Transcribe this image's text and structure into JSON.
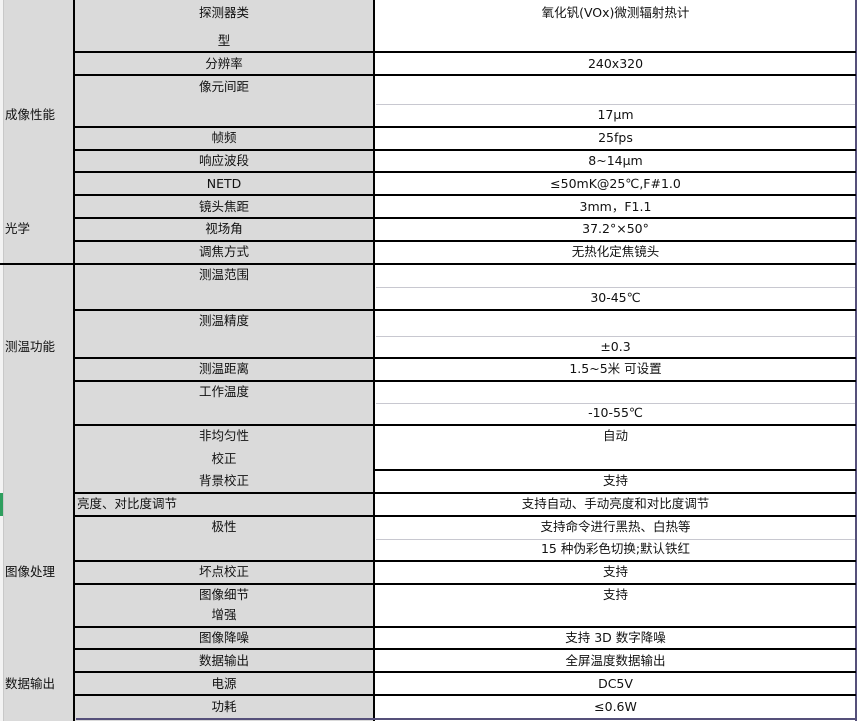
{
  "categories": {
    "imaging": "成像性能",
    "optics": "光学",
    "temperature": "测温功能",
    "image_processing": "图像处理",
    "data_output": "数据输出"
  },
  "rows": [
    {
      "label": [
        "探测器类",
        "型"
      ],
      "value": [
        "氧化钒(VOx)微测辐射热计"
      ]
    },
    {
      "label": [
        "分辨率"
      ],
      "value": [
        "240x320"
      ]
    },
    {
      "label": [
        "像元间距"
      ],
      "value": [
        "17μm"
      ]
    },
    {
      "label": [
        "帧频"
      ],
      "value": [
        "25fps"
      ]
    },
    {
      "label": [
        "响应波段"
      ],
      "value": [
        "8~14μm"
      ]
    },
    {
      "label": [
        "NETD"
      ],
      "value": [
        "≤50mK@25℃,F#1.0"
      ]
    },
    {
      "label": [
        "镜头焦距"
      ],
      "value": [
        "3mm，F1.1"
      ]
    },
    {
      "label": [
        "视场角"
      ],
      "value": [
        "37.2°×50°"
      ]
    },
    {
      "label": [
        "调焦方式"
      ],
      "value": [
        "无热化定焦镜头"
      ]
    },
    {
      "label": [
        "测温范围"
      ],
      "value": [
        "30-45℃"
      ]
    },
    {
      "label": [
        "测温精度"
      ],
      "value": [
        "±0.3"
      ]
    },
    {
      "label": [
        "测温距离"
      ],
      "value": [
        "1.5~5米 可设置"
      ]
    },
    {
      "label": [
        "工作温度"
      ],
      "value": [
        "-10-55℃"
      ]
    },
    {
      "label": [
        "非均匀性",
        "校正"
      ],
      "value": [
        "自动"
      ]
    },
    {
      "label": [
        "背景校正"
      ],
      "value": [
        "支持"
      ]
    },
    {
      "label": [
        "亮度、对比度调节"
      ],
      "value": [
        "支持自动、手动亮度和对比度调节"
      ]
    },
    {
      "label": [
        "极性"
      ],
      "value": [
        "支持命令进行黑热、白热等",
        "15 种伪彩色切换;默认铁红"
      ]
    },
    {
      "label": [
        "坏点校正"
      ],
      "value": [
        "支持"
      ]
    },
    {
      "label": [
        "图像细节",
        "增强"
      ],
      "value": [
        "支持"
      ]
    },
    {
      "label": [
        "图像降噪"
      ],
      "value": [
        "支持 3D 数字降噪"
      ]
    },
    {
      "label": [
        "数据输出"
      ],
      "value": [
        "全屏温度数据输出"
      ]
    },
    {
      "label": [
        "电源"
      ],
      "value": [
        "DC5V"
      ]
    },
    {
      "label": [
        "功耗"
      ],
      "value": [
        "≤0.6W"
      ]
    }
  ]
}
